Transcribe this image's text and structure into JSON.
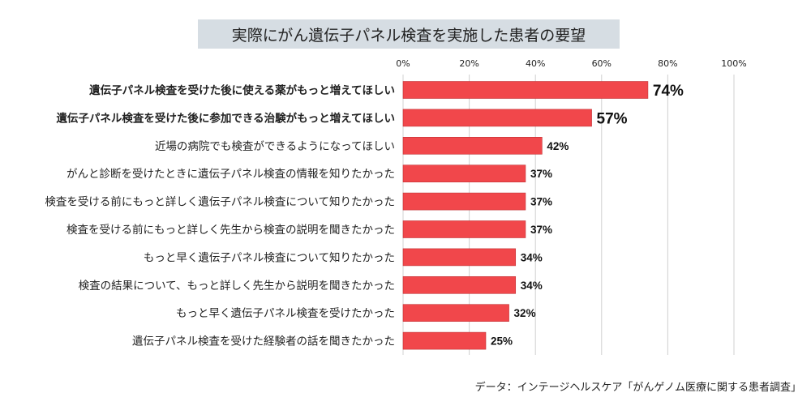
{
  "title": "実際にがん遺伝子パネル検査を実施した患者の要望",
  "source": "データ：インテージヘルスケア「がんゲノム医療に関する患者調査」",
  "colors": {
    "bar": "#f1474b",
    "grid": "#d0d0d0",
    "title_bg": "#d6dde3",
    "text": "#222222"
  },
  "chart_data": {
    "type": "bar",
    "orientation": "horizontal",
    "title": "実際にがん遺伝子パネル検査を実施した患者の要望",
    "xlim": [
      0,
      100
    ],
    "x_ticks": [
      "0%",
      "20%",
      "40%",
      "60%",
      "80%",
      "100%"
    ],
    "grid": true,
    "categories": [
      "遺伝子パネル検査を受けた後に使える薬がもっと増えてほしい",
      "遺伝子パネル検査を受けた後に参加できる治験がもっと増えてほしい",
      "近場の病院でも検査ができるようになってほしい",
      "がんと診断を受けたときに遺伝子パネル検査の情報を知りたかった",
      "検査を受ける前にもっと詳しく遺伝子パネル検査について知りたかった",
      "検査を受ける前にもっと詳しく先生から検査の説明を聞きたかった",
      "もっと早く遺伝子パネル検査について知りたかった",
      "検査の結果について、もっと詳しく先生から説明を聞きたかった",
      "もっと早く遺伝子パネル検査を受けたかった",
      "遺伝子パネル検査を受けた経験者の話を聞きたかった"
    ],
    "values": [
      74,
      57,
      42,
      37,
      37,
      37,
      34,
      34,
      32,
      25
    ],
    "value_labels": [
      "74%",
      "57%",
      "42%",
      "37%",
      "37%",
      "37%",
      "34%",
      "34%",
      "32%",
      "25%"
    ],
    "highlighted": [
      true,
      true,
      false,
      false,
      false,
      false,
      false,
      false,
      false,
      false
    ]
  }
}
